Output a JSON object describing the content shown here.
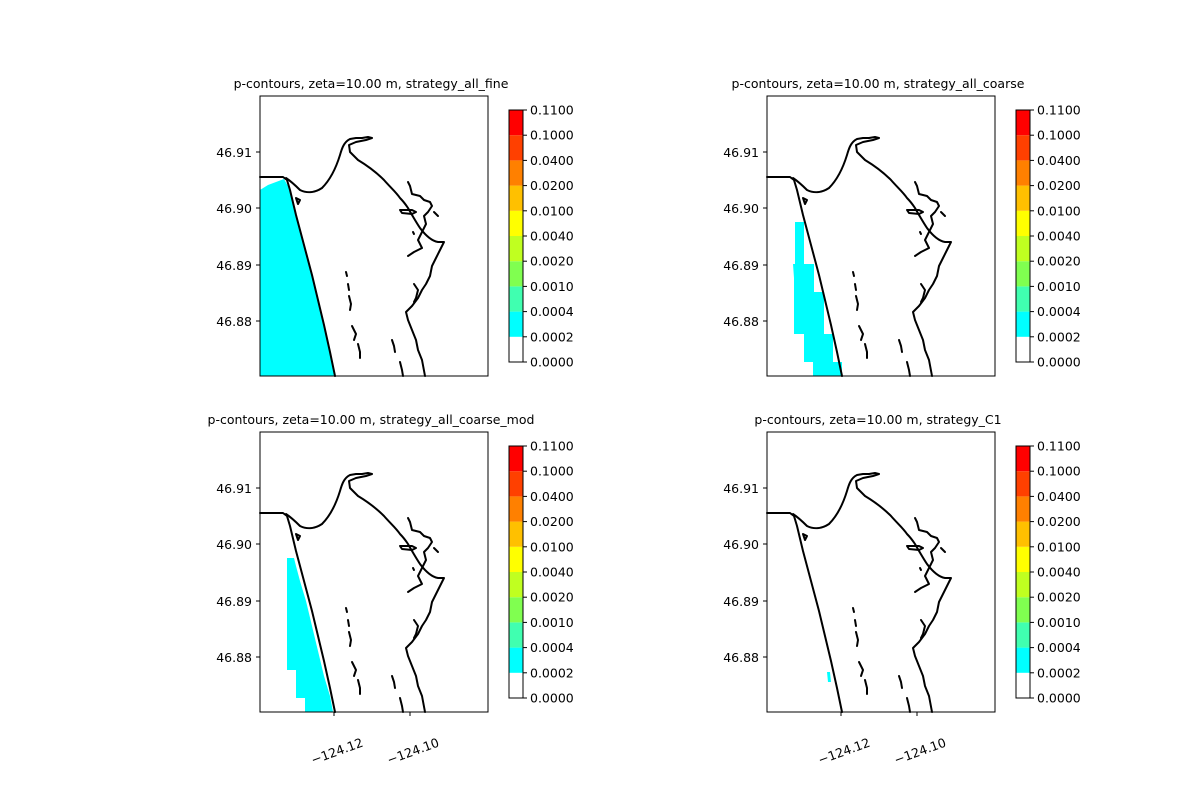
{
  "figure": {
    "background": "#ffffff"
  },
  "shared": {
    "yticks": [
      "46.88",
      "46.89",
      "46.90",
      "46.91"
    ],
    "xticks": [
      "−124.12",
      "−124.10"
    ],
    "colorbar_levels": [
      "0.0000",
      "0.0002",
      "0.0004",
      "0.0010",
      "0.0020",
      "0.0040",
      "0.0100",
      "0.0200",
      "0.0400",
      "0.1000",
      "0.1100"
    ],
    "colorbar_colors": [
      "#ffffff",
      "#00ffff",
      "#40ffb0",
      "#80ff50",
      "#c0ff20",
      "#ffff00",
      "#ffc000",
      "#ff8000",
      "#ff4000",
      "#ff0000"
    ],
    "land_line_color": "#000000",
    "fill_color": "#00ffff"
  },
  "chart_data": [
    {
      "type": "contour",
      "title": "p-contours, zeta=10.00 m, strategy_all_fine",
      "xlabel": "",
      "ylabel": "",
      "xlim": [
        -124.14,
        -124.08
      ],
      "ylim": [
        46.871,
        46.92
      ],
      "show_xticks": false,
      "filled_region": "broad cyan band (p between 0.0002 and 0.0004) covering the whole offshore strip west of the coastline from about 46.871 to 46.903"
    },
    {
      "type": "contour",
      "title": "p-contours, zeta=10.00 m, strategy_all_coarse",
      "xlabel": "",
      "ylabel": "",
      "xlim": [
        -124.14,
        -124.08
      ],
      "ylim": [
        46.871,
        46.92
      ],
      "show_xticks": false,
      "filled_region": "blocky cyan region (p between 0.0002 and 0.0004) adjacent to the coastline from about 46.871 to 46.898"
    },
    {
      "type": "contour",
      "title": "p-contours, zeta=10.00 m, strategy_all_coarse_mod",
      "xlabel": "",
      "ylabel": "",
      "xlim": [
        -124.14,
        -124.08
      ],
      "ylim": [
        46.871,
        46.92
      ],
      "show_xticks": true,
      "filled_region": "narrow blocky cyan strip (p between 0.0002 and 0.0004) along the coastline from about 46.871 to 46.898"
    },
    {
      "type": "contour",
      "title": "p-contours, zeta=10.00 m, strategy_C1",
      "xlabel": "",
      "ylabel": "",
      "xlim": [
        -124.14,
        -124.08
      ],
      "ylim": [
        46.871,
        46.92
      ],
      "show_xticks": true,
      "filled_region": "tiny cyan patch near the coastline around 46.876"
    }
  ]
}
